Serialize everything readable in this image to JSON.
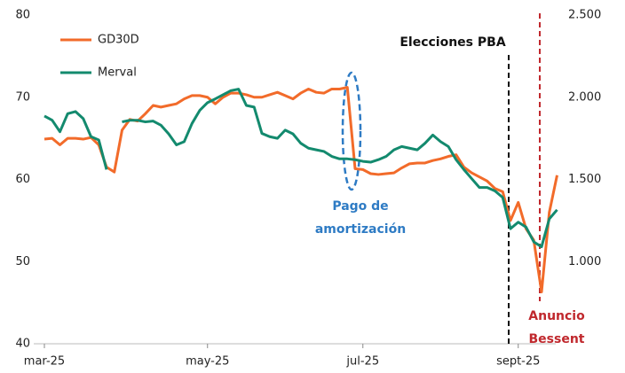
{
  "chart_data": {
    "type": "line",
    "categories": [
      "mar-25",
      null,
      null,
      null,
      null,
      null,
      null,
      null,
      null,
      null,
      null,
      null,
      null,
      null,
      null,
      null,
      null,
      null,
      null,
      null,
      null,
      "may-25",
      null,
      null,
      null,
      null,
      null,
      null,
      null,
      null,
      null,
      null,
      null,
      null,
      null,
      null,
      null,
      null,
      null,
      null,
      null,
      "jul-25",
      null,
      null,
      null,
      null,
      null,
      null,
      null,
      null,
      null,
      null,
      null,
      null,
      null,
      null,
      null,
      null,
      null,
      null,
      null,
      "sept-25",
      null,
      null,
      null,
      null,
      null
    ],
    "series": [
      {
        "name": "GD30D",
        "color": "#f26b2a",
        "values": [
          64.9,
          65.0,
          64.2,
          65.0,
          65.0,
          64.9,
          65.1,
          64.2,
          61.5,
          60.9,
          66.0,
          67.3,
          67.1,
          68.0,
          69.0,
          68.8,
          69.0,
          69.2,
          69.8,
          70.2,
          70.2,
          70.0,
          69.2,
          70.0,
          70.5,
          70.5,
          70.3,
          70.0,
          70.0,
          70.3,
          70.6,
          70.2,
          69.8,
          70.5,
          71.0,
          70.6,
          70.5,
          71.0,
          71.0,
          71.2,
          61.3,
          61.2,
          60.7,
          60.6,
          60.7,
          60.8,
          61.4,
          61.9,
          62.0,
          62.0,
          62.3,
          62.5,
          62.8,
          63.0,
          61.5,
          60.8,
          60.3,
          59.8,
          58.9,
          58.5,
          55.0,
          57.2,
          54.0,
          52.6,
          46.3,
          56.0,
          60.5
        ]
      },
      {
        "name": "Merval",
        "color": "#138a6e",
        "axis": "y2",
        "values": [
          1886,
          1860,
          1790,
          1900,
          1913,
          1870,
          1760,
          1740,
          1560,
          null,
          1850,
          1860,
          1860,
          1850,
          1855,
          1830,
          1777,
          1710,
          1730,
          1840,
          1920,
          1967,
          1990,
          2015,
          2040,
          2049,
          1950,
          1940,
          1780,
          1760,
          1750,
          1800,
          1777,
          1720,
          1690,
          1680,
          1670,
          1640,
          1625,
          1625,
          1620,
          1610,
          1605,
          1620,
          1640,
          1680,
          1700,
          1690,
          1680,
          1720,
          1770,
          1730,
          1700,
          1620,
          1560,
          1505,
          1451,
          1451,
          1430,
          1390,
          1200,
          1240,
          1210,
          1120,
          1090,
          1260,
          1315
        ]
      }
    ],
    "ylim": [
      40,
      80
    ],
    "yticks": [
      40,
      50,
      60,
      70,
      80
    ],
    "y2lim": [
      500,
      2500
    ],
    "y2ticks": [
      {
        "value": 1000,
        "label": "1.000"
      },
      {
        "value": 1500,
        "label": "1.500"
      },
      {
        "value": 2000,
        "label": "2.000"
      },
      {
        "value": 2500,
        "label": "2.500"
      }
    ],
    "grid": false,
    "legend": "upper left",
    "annotations": [
      {
        "lines": [
          "Elecciones PBA"
        ],
        "color": "#111111"
      },
      {
        "lines": [
          "Pago de",
          "amortización"
        ],
        "color": "#2e7bc4"
      },
      {
        "lines": [
          "Anuncio",
          "Bessent"
        ],
        "color": "#c0282d"
      }
    ]
  }
}
